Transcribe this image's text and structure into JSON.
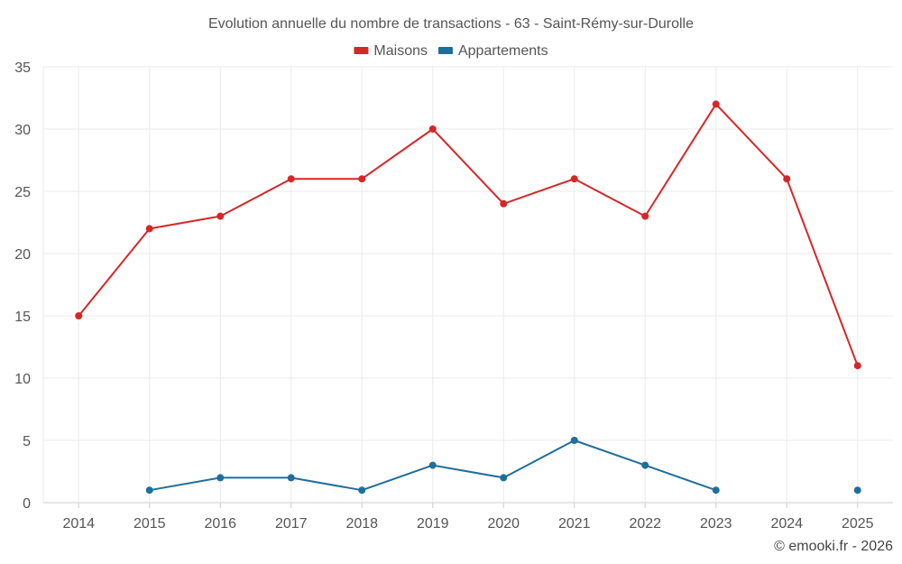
{
  "chart_data": {
    "type": "line",
    "title": "Evolution annuelle du nombre de transactions - 63 - Saint-Rémy-sur-Durolle",
    "categories": [
      "2014",
      "2015",
      "2016",
      "2017",
      "2018",
      "2019",
      "2020",
      "2021",
      "2022",
      "2023",
      "2024",
      "2025"
    ],
    "series": [
      {
        "name": "Maisons",
        "color": "#d62728",
        "values": [
          15,
          22,
          23,
          26,
          26,
          30,
          24,
          26,
          23,
          32,
          26,
          11
        ]
      },
      {
        "name": "Appartements",
        "color": "#1f6e9c",
        "values": [
          null,
          1,
          2,
          2,
          1,
          3,
          2,
          5,
          3,
          1,
          null,
          1
        ]
      }
    ],
    "ylim": [
      0,
      35
    ],
    "yticks": [
      0,
      5,
      10,
      15,
      20,
      25,
      30,
      35
    ],
    "grid": true,
    "legend": "top-center",
    "xlabel": "",
    "ylabel": ""
  },
  "credit": "© emooki.fr - 2026"
}
